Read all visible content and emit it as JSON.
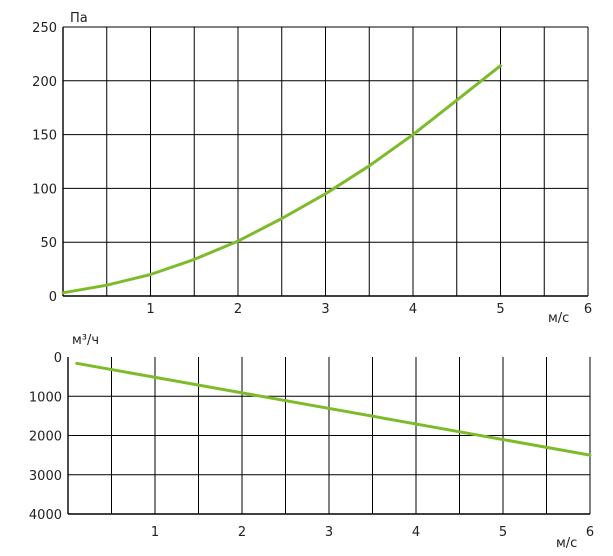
{
  "chart_data": [
    {
      "type": "line",
      "title": "",
      "xlabel": "м/с",
      "ylabel": "Па",
      "xlim": [
        0,
        6
      ],
      "ylim": [
        0,
        250
      ],
      "x_ticks": [
        "1",
        "2",
        "3",
        "4",
        "5",
        "6"
      ],
      "y_ticks": [
        "0",
        "50",
        "100",
        "150",
        "200",
        "250"
      ],
      "grid": true,
      "series_color": "#7dbb2a",
      "series": [
        {
          "x": [
            0,
            0.5,
            1,
            1.5,
            2,
            2.5,
            3,
            3.5,
            4,
            4.5,
            5
          ],
          "values": [
            3,
            10,
            20,
            34,
            51,
            72,
            95,
            121,
            150,
            182,
            214
          ]
        }
      ]
    },
    {
      "type": "line",
      "title": "",
      "xlabel": "м/с",
      "ylabel": "м³/ч",
      "xlim": [
        0,
        6
      ],
      "ylim": [
        0,
        4000
      ],
      "y_inverted": true,
      "x_ticks": [
        "1",
        "2",
        "3",
        "4",
        "5",
        "6"
      ],
      "y_ticks": [
        "0",
        "1000",
        "2000",
        "3000",
        "4000"
      ],
      "grid": true,
      "series_color": "#7dbb2a",
      "series": [
        {
          "x": [
            0.1,
            6
          ],
          "values": [
            160,
            2500
          ]
        }
      ]
    }
  ]
}
